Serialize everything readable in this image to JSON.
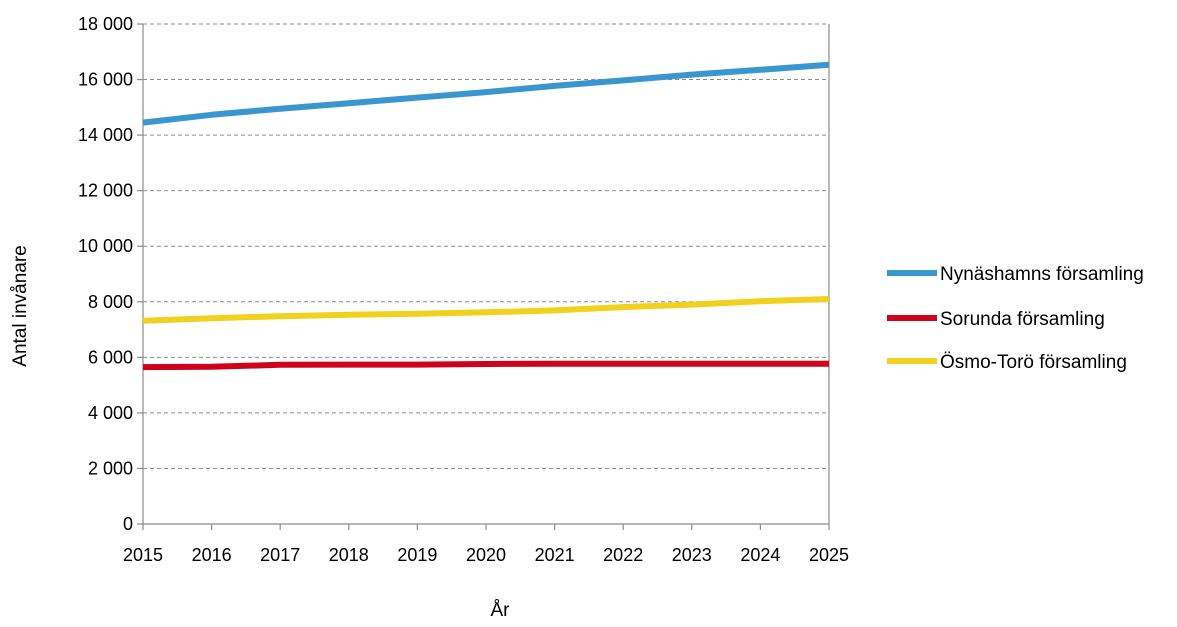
{
  "chart_data": {
    "type": "line",
    "title": "",
    "xlabel": "År",
    "ylabel": "Antal invånare",
    "x": [
      "2015",
      "2016",
      "2017",
      "2018",
      "2019",
      "2020",
      "2021",
      "2022",
      "2023",
      "2024",
      "2025"
    ],
    "yticks": [
      "0",
      "2 000",
      "4 000",
      "6 000",
      "8 000",
      "10 000",
      "12 000",
      "14 000",
      "16 000",
      "18 000"
    ],
    "ylim": [
      0,
      18000
    ],
    "grid": true,
    "legend_position": "right",
    "series": [
      {
        "name": "Nynäshamns församling",
        "color": "#3a96cf",
        "values": [
          14450,
          14730,
          14950,
          15150,
          15350,
          15550,
          15770,
          15970,
          16180,
          16350,
          16530
        ]
      },
      {
        "name": "Sorunda församling",
        "color": "#d0021b",
        "values": [
          5650,
          5660,
          5730,
          5740,
          5740,
          5760,
          5770,
          5770,
          5770,
          5770,
          5770
        ]
      },
      {
        "name": "Ösmo-Torö församling",
        "color": "#f2d01e",
        "values": [
          7320,
          7410,
          7480,
          7530,
          7570,
          7620,
          7690,
          7810,
          7900,
          8020,
          8100
        ]
      }
    ]
  }
}
